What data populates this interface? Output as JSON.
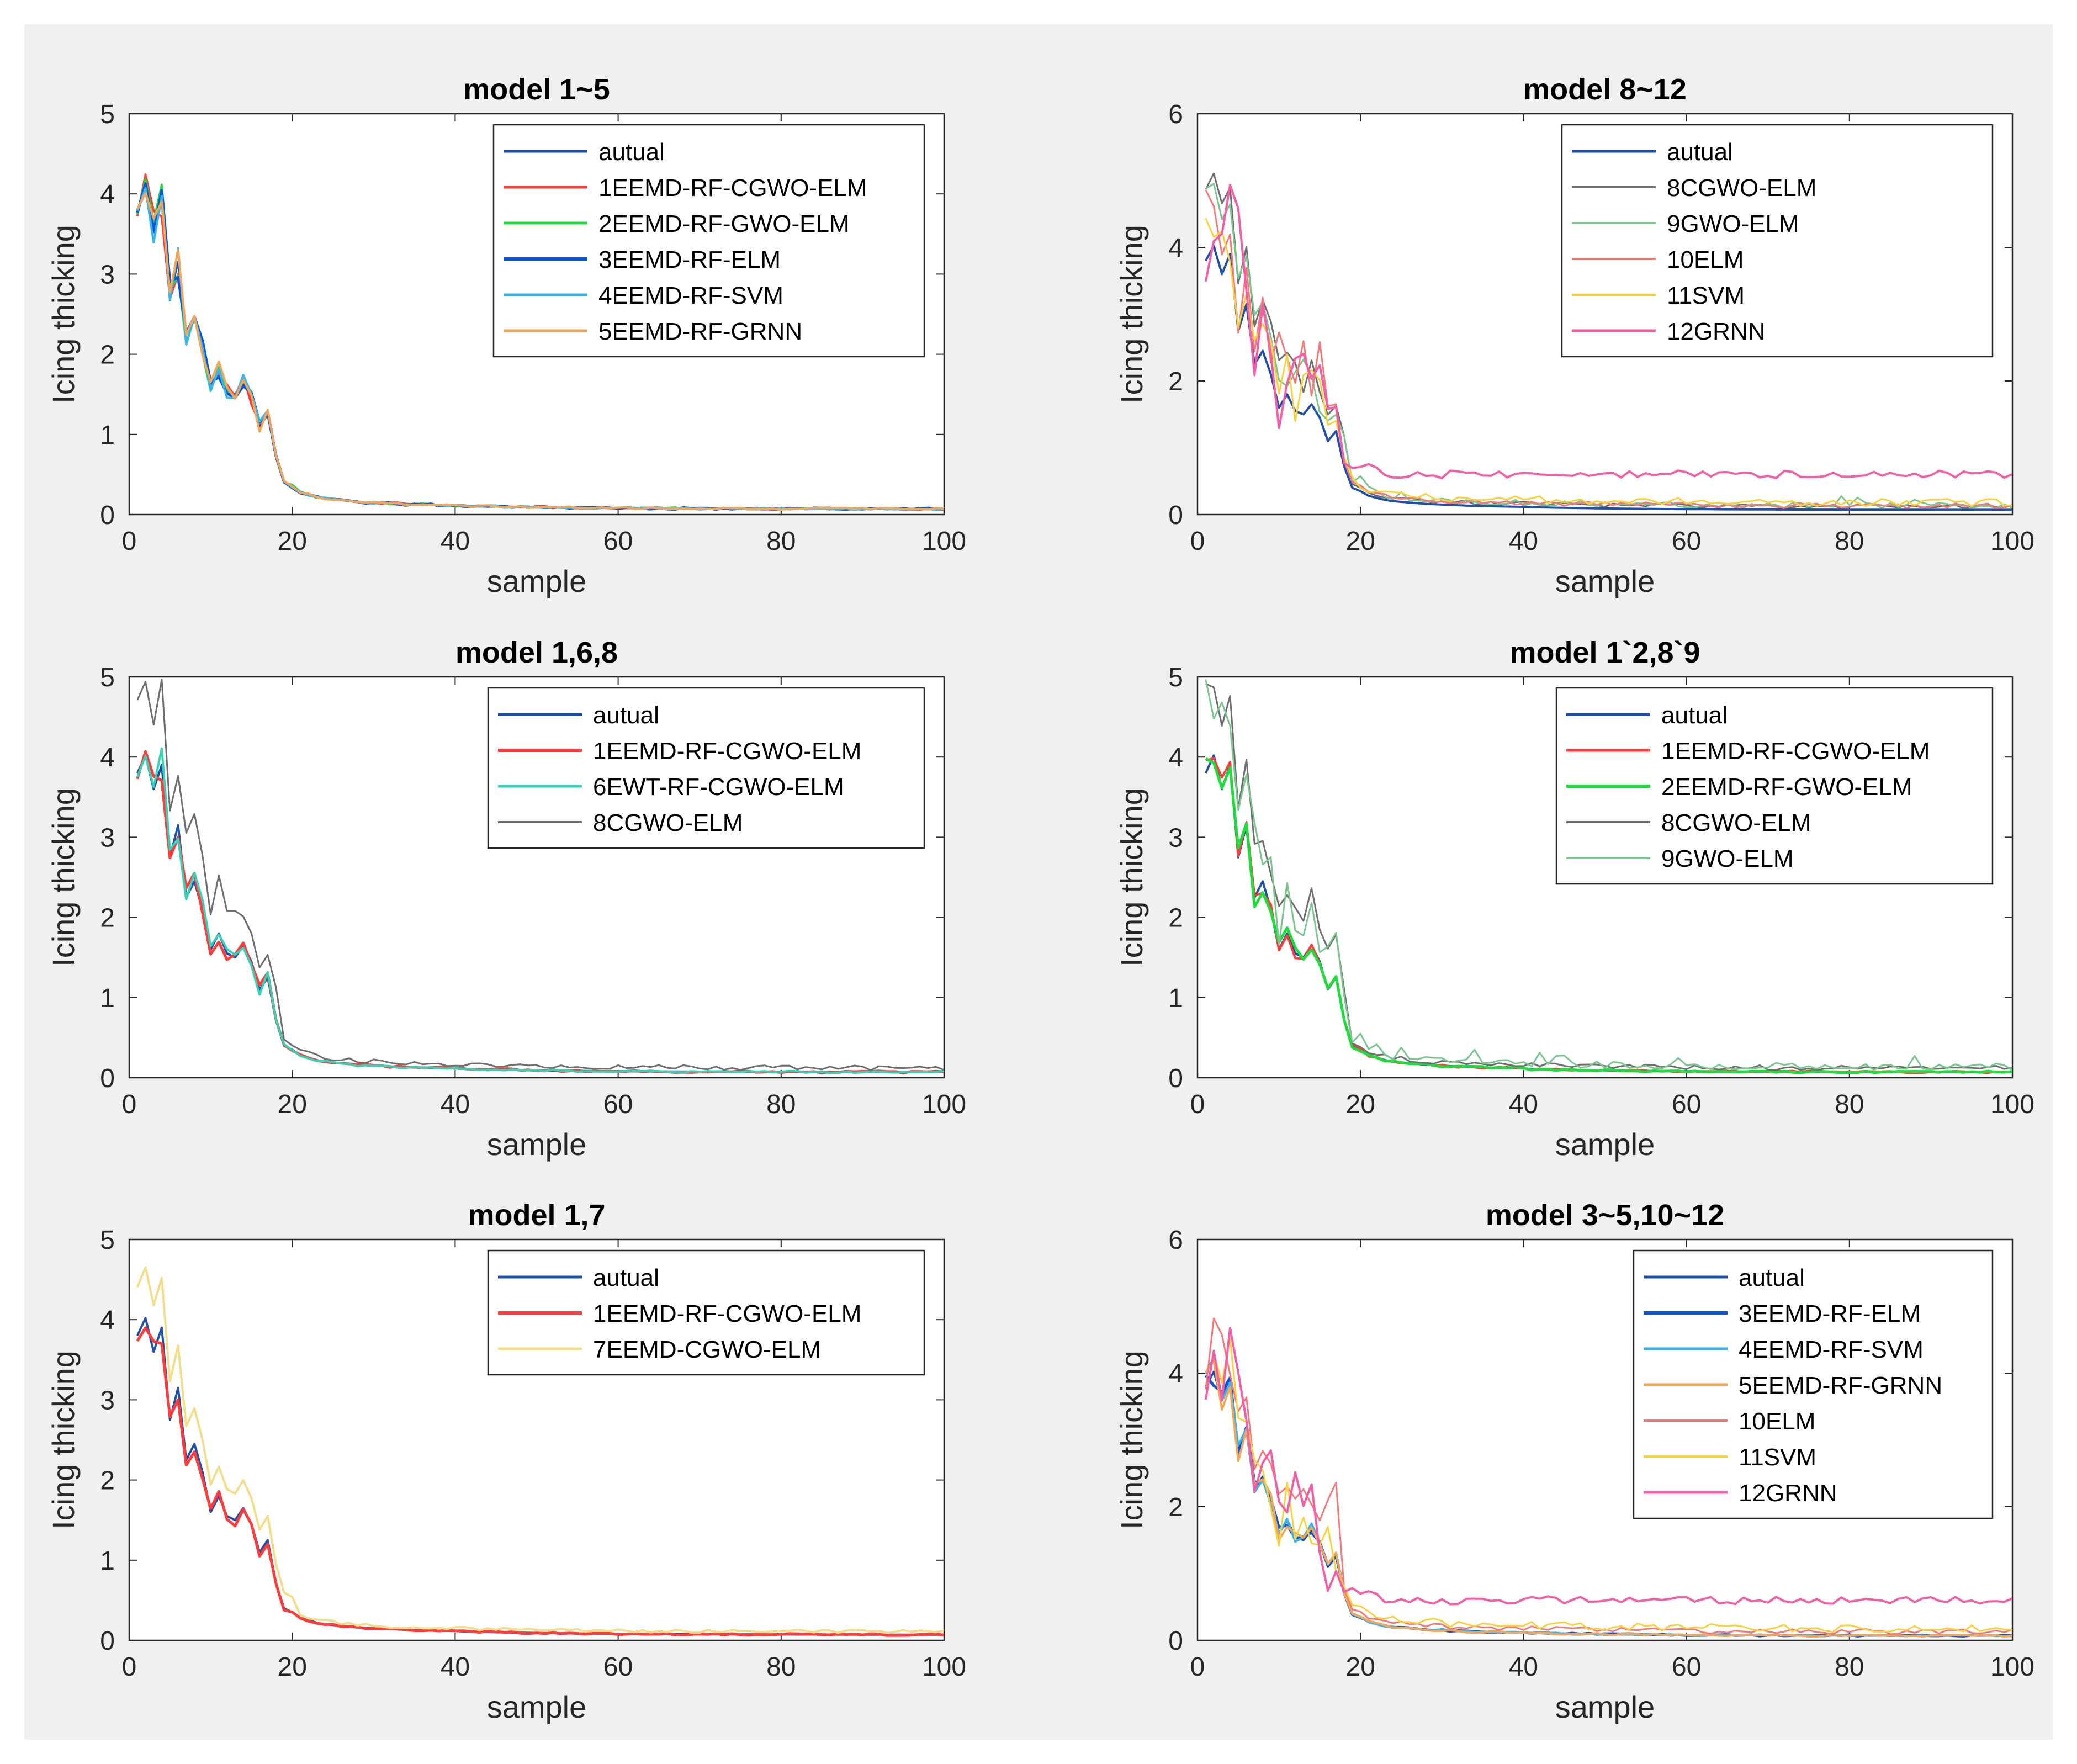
{
  "chart_data": [
    {
      "type": "line",
      "title": "model 1~5",
      "xlabel": "sample",
      "ylabel": "Icing thicking",
      "xlim": [
        0,
        100
      ],
      "ylim": [
        0,
        5
      ],
      "xticks": [
        0,
        20,
        40,
        60,
        80,
        100
      ],
      "yticks": [
        0,
        1,
        2,
        3,
        4,
        5
      ],
      "legend": "top-right",
      "series": [
        {
          "name": "autual",
          "color": "#1f4fa8",
          "width": 4
        },
        {
          "name": "1EEMD-RF-CGWO-ELM",
          "color": "#ff3b3b",
          "width": 4
        },
        {
          "name": "2EEMD-RF-GWO-ELM",
          "color": "#1edc3c",
          "width": 4
        },
        {
          "name": "3EEMD-RF-ELM",
          "color": "#0a55d8",
          "width": 5
        },
        {
          "name": "4EEMD-RF-SVM",
          "color": "#3ab4ea",
          "width": 4
        },
        {
          "name": "5EEMD-RF-GRNN",
          "color": "#f2a65a",
          "width": 4
        }
      ]
    },
    {
      "type": "line",
      "title": "model 8~12",
      "xlabel": "sample",
      "ylabel": "Icing thicking",
      "xlim": [
        0,
        100
      ],
      "ylim": [
        0,
        6
      ],
      "xticks": [
        0,
        20,
        40,
        60,
        80,
        100
      ],
      "yticks": [
        0,
        2,
        4,
        6
      ],
      "legend": "top-right",
      "series": [
        {
          "name": "autual",
          "color": "#1f4fa8",
          "width": 4
        },
        {
          "name": "8CGWO-ELM",
          "color": "#6e6e6e",
          "width": 3
        },
        {
          "name": "9GWO-ELM",
          "color": "#7ac68e",
          "width": 3
        },
        {
          "name": "10ELM",
          "color": "#f47a7a",
          "width": 3
        },
        {
          "name": "11SVM",
          "color": "#f7d23c",
          "width": 3
        },
        {
          "name": "12GRNN",
          "color": "#f25fa6",
          "width": 4
        }
      ]
    },
    {
      "type": "line",
      "title": "model 1,6,8",
      "xlabel": "sample",
      "ylabel": "Icing thicking",
      "xlim": [
        0,
        100
      ],
      "ylim": [
        0,
        5
      ],
      "xticks": [
        0,
        20,
        40,
        60,
        80,
        100
      ],
      "yticks": [
        0,
        1,
        2,
        3,
        4,
        5
      ],
      "legend": "top-right",
      "series": [
        {
          "name": "autual",
          "color": "#1f4fa8",
          "width": 4
        },
        {
          "name": "1EEMD-RF-CGWO-ELM",
          "color": "#ff3b3b",
          "width": 5
        },
        {
          "name": "6EWT-RF-CGWO-ELM",
          "color": "#35d2b6",
          "width": 4
        },
        {
          "name": "8CGWO-ELM",
          "color": "#6e6e6e",
          "width": 3
        }
      ]
    },
    {
      "type": "line",
      "title": "model 1`2,8`9",
      "xlabel": "sample",
      "ylabel": "Icing thicking",
      "xlim": [
        0,
        100
      ],
      "ylim": [
        0,
        5
      ],
      "xticks": [
        0,
        20,
        40,
        60,
        80,
        100
      ],
      "yticks": [
        0,
        1,
        2,
        3,
        4,
        5
      ],
      "legend": "top-right",
      "series": [
        {
          "name": "autual",
          "color": "#1f4fa8",
          "width": 4
        },
        {
          "name": "1EEMD-RF-CGWO-ELM",
          "color": "#ff3b3b",
          "width": 4
        },
        {
          "name": "2EEMD-RF-GWO-ELM",
          "color": "#1edc3c",
          "width": 5
        },
        {
          "name": "8CGWO-ELM",
          "color": "#6e6e6e",
          "width": 3
        },
        {
          "name": "9GWO-ELM",
          "color": "#7ac68e",
          "width": 3
        }
      ]
    },
    {
      "type": "line",
      "title": "model 1,7",
      "xlabel": "sample",
      "ylabel": "Icing thicking",
      "xlim": [
        0,
        100
      ],
      "ylim": [
        0,
        5
      ],
      "xticks": [
        0,
        20,
        40,
        60,
        80,
        100
      ],
      "yticks": [
        0,
        1,
        2,
        3,
        4,
        5
      ],
      "legend": "top-right",
      "series": [
        {
          "name": "autual",
          "color": "#1f4fa8",
          "width": 4
        },
        {
          "name": "1EEMD-RF-CGWO-ELM",
          "color": "#ff3b3b",
          "width": 5
        },
        {
          "name": "7EEMD-CGWO-ELM",
          "color": "#f1dd8a",
          "width": 4
        }
      ]
    },
    {
      "type": "line",
      "title": "model 3~5,10~12",
      "xlabel": "sample",
      "ylabel": "Icing thicking",
      "xlim": [
        0,
        100
      ],
      "ylim": [
        0,
        6
      ],
      "xticks": [
        0,
        20,
        40,
        60,
        80,
        100
      ],
      "yticks": [
        0,
        2,
        4,
        6
      ],
      "legend": "top-right",
      "series": [
        {
          "name": "autual",
          "color": "#1f4fa8",
          "width": 4
        },
        {
          "name": "3EEMD-RF-ELM",
          "color": "#0a55d8",
          "width": 5
        },
        {
          "name": "4EEMD-RF-SVM",
          "color": "#3ab4ea",
          "width": 4
        },
        {
          "name": "5EEMD-RF-GRNN",
          "color": "#f2a65a",
          "width": 4
        },
        {
          "name": "10ELM",
          "color": "#f47a7a",
          "width": 3
        },
        {
          "name": "11SVM",
          "color": "#f7d23c",
          "width": 3
        },
        {
          "name": "12GRNN",
          "color": "#f25fa6",
          "width": 4
        }
      ]
    }
  ],
  "reference_curves": {
    "samples": 100,
    "base": [
      3.8,
      4.02,
      3.6,
      3.9,
      2.75,
      3.15,
      2.25,
      2.45,
      2.1,
      1.6,
      1.8,
      1.55,
      1.5,
      1.65,
      1.45,
      1.1,
      1.25,
      0.72,
      0.4,
      0.35,
      0.28,
      0.25,
      0.22,
      0.2,
      0.19,
      0.18,
      0.17,
      0.16,
      0.155,
      0.15,
      0.145,
      0.14,
      0.135,
      0.13,
      0.128,
      0.125,
      0.122,
      0.12,
      0.118,
      0.116
    ],
    "tail": 0.07,
    "grnn_level": 0.6,
    "cgwo_level": 0.12
  }
}
